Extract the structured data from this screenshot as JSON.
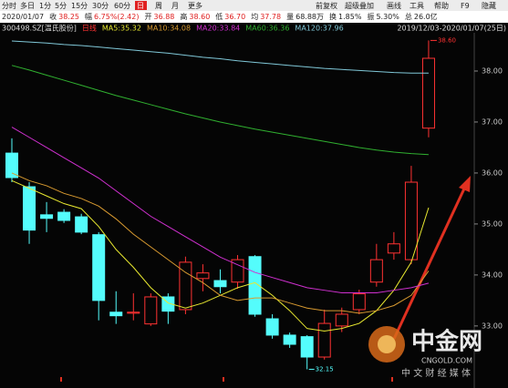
{
  "toolbar": {
    "left": [
      "分时",
      "多日",
      "1分",
      "5分",
      "15分",
      "30分",
      "60分",
      "日",
      "周",
      "月",
      "更多"
    ],
    "right": [
      "前复权",
      "超级叠加",
      "画线",
      "工具",
      "帮助",
      "F9",
      "隐藏"
    ]
  },
  "quote": {
    "date": "2020/01/07",
    "items": [
      {
        "label": "收",
        "value": "38.25",
        "color": "#e02020"
      },
      {
        "label": "幅",
        "value": "6.75%(2.42)",
        "color": "#e02020"
      },
      {
        "label": "开",
        "value": "36.88",
        "color": "#e02020"
      },
      {
        "label": "高",
        "value": "38.60",
        "color": "#e02020"
      },
      {
        "label": "低",
        "value": "36.70",
        "color": "#e02020"
      },
      {
        "label": "均",
        "value": "37.78",
        "color": "#e02020"
      },
      {
        "label": "量",
        "value": "68.88万",
        "color": "#222222"
      },
      {
        "label": "换",
        "value": "1.85%",
        "color": "#222222"
      },
      {
        "label": "振",
        "value": "5.30%",
        "color": "#222222"
      },
      {
        "label": "总",
        "value": "26.0亿",
        "color": "#222222"
      }
    ]
  },
  "watermark": {
    "name": "中金网",
    "site": "CNGOLD.COM",
    "slogan": "中 文 财 经 媒 体"
  },
  "chart_data": {
    "type": "candlestick",
    "symbol": "300498.SZ[温氏股份]",
    "period": "日线",
    "date_range": "2019/12/03-2020/01/07(25日)",
    "up_color": "#ff3232",
    "down_color": "#54fcfc",
    "open": [
      36.39,
      35.73,
      35.18,
      35.23,
      35.14,
      34.79,
      33.27,
      33.25,
      33.04,
      33.57,
      33.32,
      33.93,
      33.89,
      33.86,
      34.36,
      33.14,
      32.82,
      32.79,
      32.39,
      33.0,
      33.32,
      33.86,
      34.43,
      34.3,
      36.88
    ],
    "high": [
      36.68,
      35.82,
      35.43,
      35.29,
      35.2,
      34.84,
      33.68,
      33.64,
      33.64,
      33.64,
      34.36,
      34.21,
      34.11,
      34.39,
      34.39,
      33.23,
      32.87,
      32.82,
      33.32,
      33.36,
      33.71,
      34.61,
      34.84,
      36.14,
      38.6
    ],
    "low": [
      35.82,
      34.61,
      34.84,
      35.02,
      34.8,
      33.11,
      33.04,
      33.11,
      33.0,
      33.04,
      33.23,
      33.68,
      33.64,
      33.73,
      33.18,
      32.75,
      32.57,
      32.15,
      32.34,
      32.88,
      33.23,
      33.77,
      34.3,
      34.21,
      36.7
    ],
    "close": [
      35.91,
      34.88,
      35.11,
      35.07,
      34.84,
      33.5,
      33.2,
      33.27,
      33.57,
      33.29,
      34.25,
      34.04,
      33.77,
      34.3,
      33.23,
      32.82,
      32.64,
      32.39,
      33.05,
      33.23,
      33.63,
      34.3,
      34.61,
      35.82,
      38.25
    ],
    "series": [
      {
        "name": "MA5:35.32",
        "color": "#e8e830",
        "values": [
          35.85,
          35.7,
          35.55,
          35.4,
          35.3,
          34.95,
          34.5,
          34.15,
          33.75,
          33.45,
          33.35,
          33.45,
          33.6,
          33.75,
          33.85,
          33.6,
          33.3,
          32.95,
          32.9,
          32.95,
          33.05,
          33.3,
          33.7,
          34.25,
          35.32
        ]
      },
      {
        "name": "MA10:34.08",
        "color": "#d89a30",
        "values": [
          36.0,
          35.85,
          35.75,
          35.6,
          35.5,
          35.35,
          35.1,
          34.8,
          34.55,
          34.3,
          34.05,
          33.85,
          33.6,
          33.5,
          33.55,
          33.55,
          33.45,
          33.35,
          33.3,
          33.3,
          33.25,
          33.3,
          33.4,
          33.6,
          34.08
        ]
      },
      {
        "name": "MA20:33.84",
        "color": "#d030d0",
        "values": [
          36.9,
          36.7,
          36.5,
          36.3,
          36.1,
          35.9,
          35.65,
          35.4,
          35.15,
          34.95,
          34.75,
          34.55,
          34.35,
          34.2,
          34.05,
          33.95,
          33.85,
          33.75,
          33.7,
          33.65,
          33.65,
          33.65,
          33.7,
          33.75,
          33.84
        ]
      },
      {
        "name": "MA60:36.36",
        "color": "#30b030",
        "values": [
          38.11,
          38.02,
          37.92,
          37.82,
          37.72,
          37.62,
          37.52,
          37.43,
          37.34,
          37.25,
          37.16,
          37.08,
          37.0,
          36.93,
          36.86,
          36.8,
          36.74,
          36.68,
          36.62,
          36.56,
          36.5,
          36.45,
          36.41,
          36.38,
          36.36
        ]
      },
      {
        "name": "MA120:37.96",
        "color": "#80c8d8",
        "values": [
          38.59,
          38.57,
          38.55,
          38.52,
          38.5,
          38.47,
          38.44,
          38.41,
          38.38,
          38.35,
          38.31,
          38.27,
          38.24,
          38.2,
          38.17,
          38.14,
          38.11,
          38.08,
          38.05,
          38.03,
          38.01,
          37.99,
          37.97,
          37.96,
          37.96
        ]
      }
    ],
    "high_label": "38.60",
    "low_label": "32.15",
    "ylim": [
      31.89,
      38.75
    ],
    "yticks": [
      {
        "value": 33,
        "label": "33.00"
      },
      {
        "value": 34,
        "label": "34.00"
      },
      {
        "value": 35,
        "label": "35.00"
      },
      {
        "value": 36,
        "label": "36.00"
      },
      {
        "value": 37,
        "label": "37.00"
      },
      {
        "value": 38,
        "label": "38.00"
      }
    ],
    "grid": false
  }
}
